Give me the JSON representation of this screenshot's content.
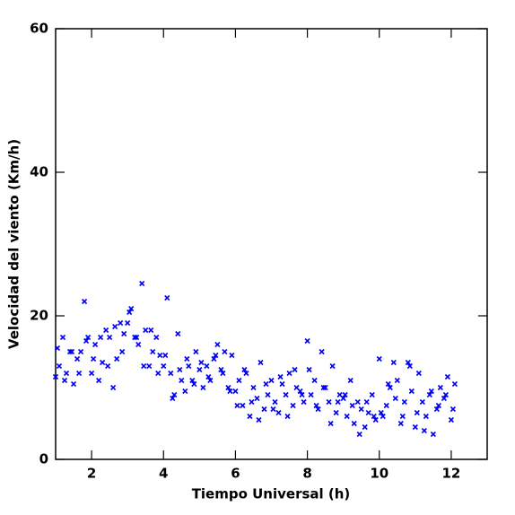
{
  "chart_data": {
    "type": "scatter",
    "x_label": "Tiempo Universal (h)",
    "y_label": "Velocidad del viento (Km/h)",
    "color": "#0000ff",
    "xlim": [
      1,
      13
    ],
    "ylim": [
      0,
      60
    ],
    "xticks": [
      2,
      4,
      6,
      8,
      10,
      12
    ],
    "yticks": [
      0,
      20,
      40,
      60
    ],
    "x": [
      1,
      1.1,
      1.2,
      1.3,
      1.4,
      1.5,
      1.6,
      1.7,
      1.8,
      1.9,
      2,
      2.1,
      2.2,
      2.3,
      2.4,
      2.5,
      2.6,
      2.7,
      2.8,
      2.9,
      3,
      3.1,
      3.2,
      3.3,
      3.4,
      3.5,
      3.6,
      3.7,
      3.8,
      3.9,
      4,
      4.1,
      4.2,
      4.3,
      4.4,
      4.5,
      4.6,
      4.7,
      4.8,
      4.9,
      5,
      5.1,
      5.2,
      5.3,
      5.4,
      5.5,
      5.6,
      5.7,
      5.8,
      5.9,
      6,
      6.1,
      6.2,
      6.3,
      6.4,
      6.5,
      6.6,
      6.7,
      6.8,
      6.9,
      7,
      7.1,
      7.2,
      7.3,
      7.4,
      7.5,
      7.6,
      7.7,
      7.8,
      7.9,
      8,
      8.1,
      8.2,
      8.3,
      8.4,
      8.5,
      8.6,
      8.7,
      8.8,
      8.9,
      9,
      9.1,
      9.2,
      9.3,
      9.4,
      9.5,
      9.6,
      9.7,
      9.8,
      9.9,
      10,
      10.1,
      10.2,
      10.3,
      10.4,
      10.5,
      10.6,
      10.7,
      10.8,
      10.9,
      11,
      11.1,
      11.2,
      11.3,
      11.4,
      11.5,
      11.6,
      11.7,
      11.8,
      11.9,
      12,
      12.1,
      1.05,
      1.25,
      1.45,
      1.65,
      1.85,
      2.05,
      2.25,
      2.45,
      2.65,
      2.85,
      3.05,
      3.25,
      3.45,
      3.65,
      3.85,
      4.05,
      4.25,
      4.45,
      4.65,
      4.85,
      5.05,
      5.25,
      5.45,
      5.65,
      5.85,
      6.05,
      6.25,
      6.45,
      6.65,
      6.85,
      7.05,
      7.25,
      7.45,
      7.65,
      7.85,
      8.05,
      8.25,
      8.45,
      8.65,
      8.85,
      9.05,
      9.25,
      9.45,
      9.65,
      9.85,
      10.05,
      10.25,
      10.45,
      10.65,
      10.85,
      11.05,
      11.25,
      11.45,
      11.65,
      11.85,
      12.05
    ],
    "values": [
      11.5,
      13,
      17,
      12,
      15,
      10.5,
      14,
      15,
      22,
      17,
      12,
      16,
      11,
      13.5,
      18,
      17,
      10,
      14,
      19,
      17.5,
      19,
      21,
      17,
      16,
      24.5,
      18,
      13,
      15,
      17,
      14.5,
      13,
      22.5,
      12,
      9,
      17.5,
      11,
      9.5,
      13,
      11,
      15,
      12.5,
      10,
      13,
      11,
      14,
      16,
      12.5,
      15,
      10,
      14.5,
      9.5,
      11,
      7.5,
      12,
      6,
      10,
      8.5,
      13.5,
      7,
      9,
      11,
      8,
      6.5,
      10.5,
      9,
      12,
      7.5,
      10,
      9.5,
      8,
      16.5,
      9,
      11,
      7,
      15,
      10,
      8,
      13,
      6.5,
      9,
      8.5,
      6,
      11,
      5,
      8,
      7,
      4.5,
      6.5,
      9,
      5.5,
      14,
      6,
      7.5,
      10,
      13.5,
      11,
      5,
      8,
      13.5,
      9.5,
      4.5,
      12,
      8,
      6,
      9,
      3.5,
      7,
      10,
      8.5,
      11.5,
      5.5,
      10.5,
      15.5,
      11,
      15,
      12,
      16.5,
      14,
      17,
      13,
      18.5,
      15,
      20.5,
      17,
      13,
      18,
      12,
      14.5,
      8.5,
      12.5,
      14,
      10.5,
      13.5,
      11.5,
      14.5,
      12,
      9.5,
      7.5,
      12.5,
      8,
      5.5,
      10.5,
      7,
      11.5,
      6,
      12.5,
      9,
      12.5,
      7.5,
      10,
      5,
      8,
      9,
      7.5,
      3.5,
      8,
      6,
      6.5,
      10.5,
      8.5,
      6,
      13,
      6.5,
      4,
      9.5,
      7.5,
      9,
      7
    ]
  }
}
